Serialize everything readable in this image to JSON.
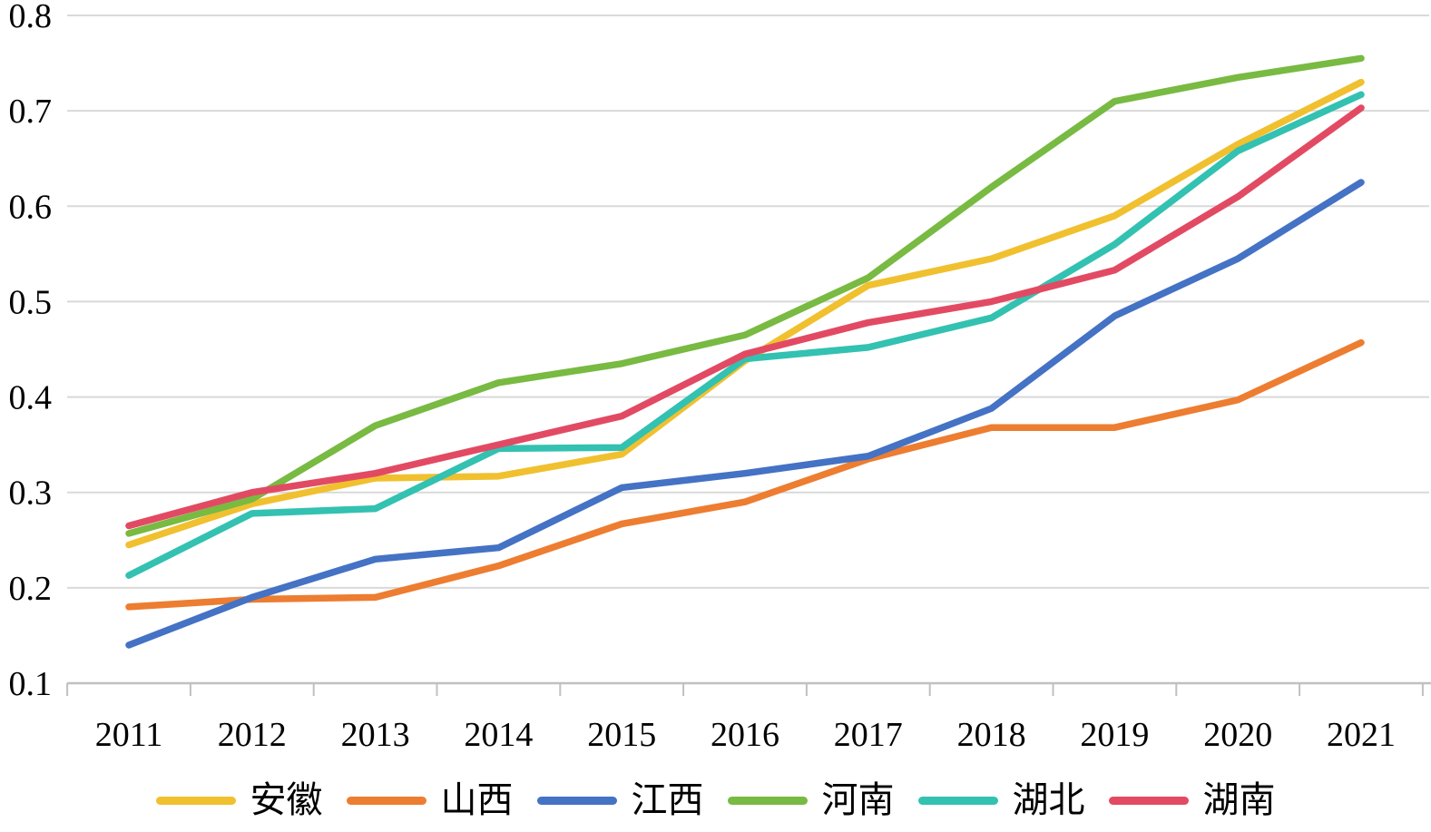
{
  "chart_data": {
    "type": "line",
    "title": "",
    "xlabel": "",
    "ylabel": "",
    "x": [
      2011,
      2012,
      2013,
      2014,
      2015,
      2016,
      2017,
      2018,
      2019,
      2020,
      2021
    ],
    "series": [
      {
        "name": "安徽",
        "slug": "anhui",
        "color": "#F0C02F",
        "values": [
          0.245,
          0.288,
          0.315,
          0.317,
          0.34,
          0.438,
          0.517,
          0.545,
          0.59,
          0.665,
          0.73
        ]
      },
      {
        "name": "山西",
        "slug": "shanxi",
        "color": "#ED7D31",
        "values": [
          0.18,
          0.188,
          0.19,
          0.223,
          0.267,
          0.29,
          0.335,
          0.368,
          0.368,
          0.397,
          0.457
        ]
      },
      {
        "name": "江西",
        "slug": "jiangxi",
        "color": "#4472C4",
        "values": [
          0.14,
          0.19,
          0.23,
          0.242,
          0.305,
          0.32,
          0.338,
          0.388,
          0.485,
          0.545,
          0.625
        ]
      },
      {
        "name": "河南",
        "slug": "henan",
        "color": "#78BA42",
        "values": [
          0.257,
          0.293,
          0.37,
          0.415,
          0.435,
          0.465,
          0.525,
          0.62,
          0.71,
          0.735,
          0.755
        ]
      },
      {
        "name": "湖北",
        "slug": "hubei",
        "color": "#33C1B1",
        "values": [
          0.213,
          0.278,
          0.283,
          0.346,
          0.347,
          0.44,
          0.452,
          0.483,
          0.56,
          0.658,
          0.717
        ]
      },
      {
        "name": "湖南",
        "slug": "hunan",
        "color": "#E24A63",
        "values": [
          0.265,
          0.3,
          0.32,
          0.35,
          0.38,
          0.445,
          0.478,
          0.5,
          0.533,
          0.61,
          0.703
        ]
      }
    ],
    "ylim": [
      0.1,
      0.8
    ],
    "y_ticks": [
      0.1,
      0.2,
      0.3,
      0.4,
      0.5,
      0.6,
      0.7,
      0.8
    ],
    "y_tick_labels": [
      "0.1",
      "0.2",
      "0.3",
      "0.4",
      "0.5",
      "0.6",
      "0.7",
      "0.8"
    ],
    "x_tick_labels": [
      "2011",
      "2012",
      "2013",
      "2014",
      "2015",
      "2016",
      "2017",
      "2018",
      "2019",
      "2020",
      "2021"
    ],
    "grid": "horizontal",
    "legend_position": "bottom"
  },
  "style": {
    "background": "#FFFFFF",
    "gridline_color": "#D9D9D9",
    "axis_color": "#C0C0C0",
    "label_color": "#000000"
  }
}
